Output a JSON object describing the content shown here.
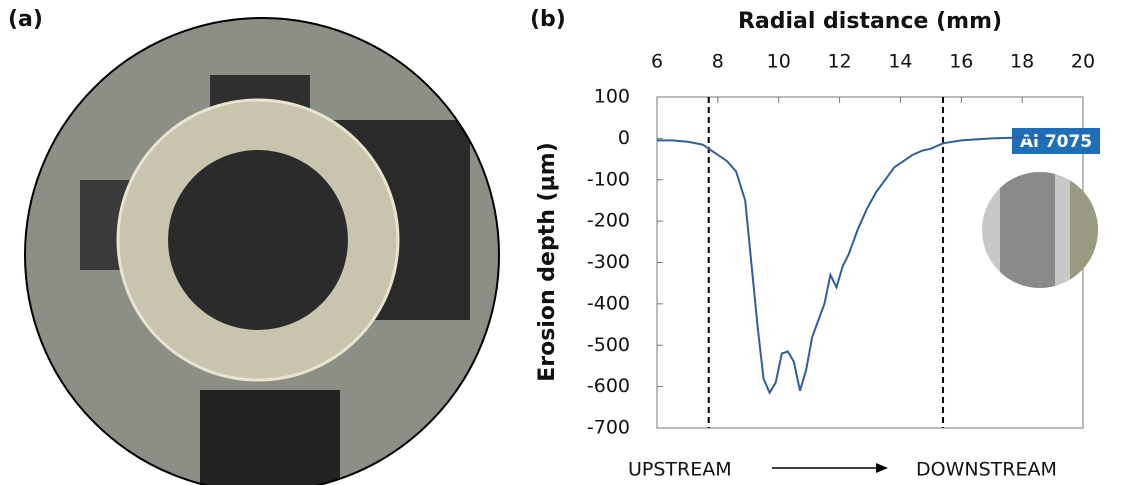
{
  "panel_labels": [
    "(a)",
    "(b)"
  ],
  "chart_data": {
    "type": "line",
    "xlabel": "Radial distance (mm)",
    "ylabel": "Erosion depth (µm)",
    "annotations": {
      "upstream": "UPSTREAM",
      "downstream": "DOWNSTREAM",
      "material": "Al 7075"
    },
    "xlim": [
      6,
      20
    ],
    "xticks": [
      6,
      8,
      10,
      12,
      14,
      16,
      18,
      20
    ],
    "ylim": [
      -700,
      100
    ],
    "yticks": [
      100,
      0,
      -100,
      -200,
      -300,
      -400,
      -500,
      -600,
      -700
    ],
    "vlines": [
      7.7,
      15.4
    ],
    "x": [
      6,
      6.5,
      7,
      7.5,
      7.7,
      8,
      8.3,
      8.6,
      8.9,
      9.1,
      9.3,
      9.5,
      9.7,
      9.9,
      10.1,
      10.3,
      10.5,
      10.7,
      10.9,
      11.1,
      11.3,
      11.5,
      11.7,
      11.9,
      12.1,
      12.3,
      12.6,
      12.9,
      13.2,
      13.5,
      13.8,
      14.1,
      14.4,
      14.7,
      15,
      15.4,
      16,
      17,
      18,
      19
    ],
    "series": [
      {
        "name": "Al 7075",
        "color": "#2e5e9e",
        "values": [
          -5,
          -5,
          -8,
          -15,
          -25,
          -40,
          -55,
          -80,
          -150,
          -300,
          -450,
          -580,
          -615,
          -590,
          -520,
          -515,
          -540,
          -610,
          -560,
          -480,
          -440,
          -400,
          -330,
          -360,
          -310,
          -280,
          -220,
          -170,
          -130,
          -100,
          -70,
          -55,
          -40,
          -30,
          -25,
          -12,
          -5,
          0,
          2,
          0
        ]
      }
    ]
  }
}
